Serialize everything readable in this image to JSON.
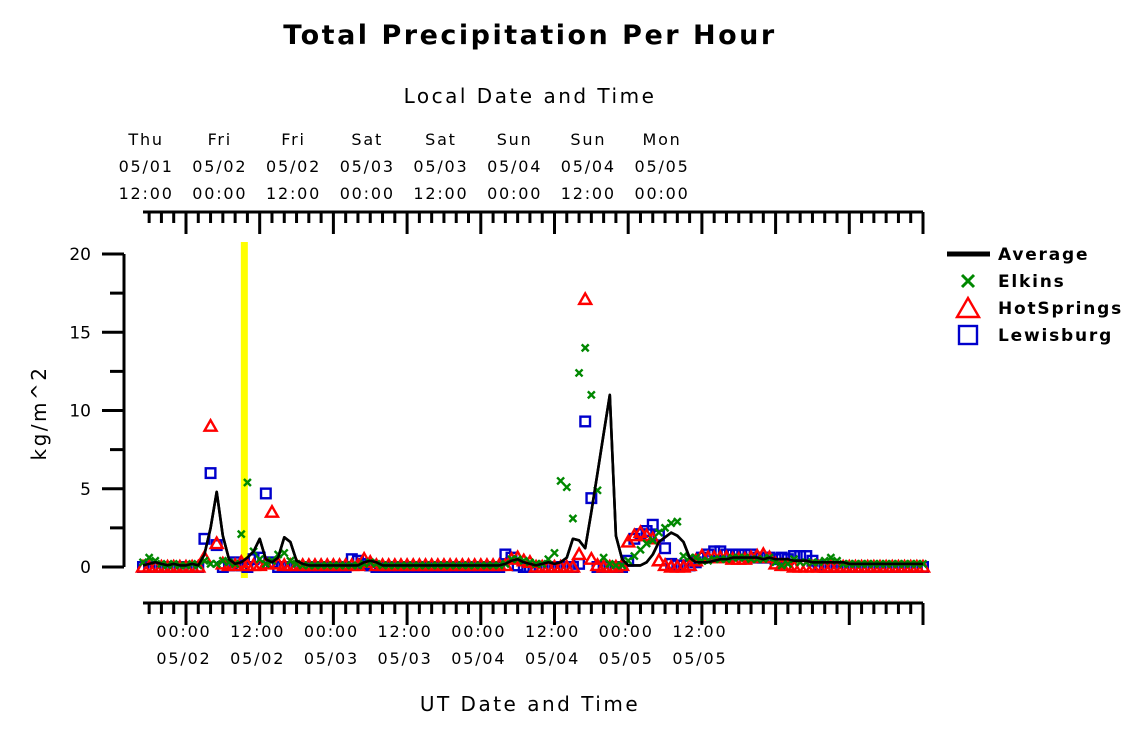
{
  "chart_data": {
    "type": "scatter",
    "title": "Total Precipitation Per Hour",
    "top_axis_title": "Local Date and Time",
    "xlabel": "UT Date and Time",
    "ylabel": "kg/m^2",
    "ylim": [
      0,
      20
    ],
    "y_ticks": [
      "0",
      "5",
      "10",
      "15",
      "20"
    ],
    "x_unit": "hours since 05/01 00:00 UT",
    "xlim": [
      17,
      144
    ],
    "bottom_ticks": [
      {
        "line1": "00:00",
        "line2": "05/02"
      },
      {
        "line1": "12:00",
        "line2": "05/02"
      },
      {
        "line1": "00:00",
        "line2": "05/03"
      },
      {
        "line1": "12:00",
        "line2": "05/03"
      },
      {
        "line1": "00:00",
        "line2": "05/04"
      },
      {
        "line1": "12:00",
        "line2": "05/04"
      },
      {
        "line1": "00:00",
        "line2": "05/05"
      },
      {
        "line1": "12:00",
        "line2": "05/05"
      }
    ],
    "top_ticks": [
      {
        "day": "Thu",
        "date": "05/01",
        "time": "12:00"
      },
      {
        "day": "Fri",
        "date": "05/02",
        "time": "00:00"
      },
      {
        "day": "Fri",
        "date": "05/02",
        "time": "12:00"
      },
      {
        "day": "Sat",
        "date": "05/03",
        "time": "00:00"
      },
      {
        "day": "Sat",
        "date": "05/03",
        "time": "12:00"
      },
      {
        "day": "Sun",
        "date": "05/04",
        "time": "00:00"
      },
      {
        "day": "Sun",
        "date": "05/04",
        "time": "12:00"
      },
      {
        "day": "Mon",
        "date": "05/05",
        "time": "00:00"
      }
    ],
    "highlight_x": 33.5,
    "highlight_color": "#ffff00",
    "legend_position": "right",
    "series": [
      {
        "name": "Average",
        "style": "line",
        "color": "#000000",
        "x": [
          17,
          18,
          19,
          20,
          21,
          22,
          23,
          24,
          25,
          26,
          27,
          28,
          29,
          30,
          31,
          32,
          33,
          34,
          35,
          36,
          37,
          38,
          39,
          40,
          41,
          42,
          43,
          44,
          45,
          46,
          47,
          48,
          49,
          50,
          51,
          52,
          53,
          54,
          55,
          56,
          57,
          58,
          59,
          60,
          61,
          62,
          63,
          64,
          65,
          66,
          67,
          68,
          69,
          70,
          71,
          72,
          73,
          74,
          75,
          76,
          77,
          78,
          79,
          80,
          81,
          82,
          83,
          84,
          85,
          86,
          87,
          88,
          89,
          90,
          91,
          92,
          93,
          94,
          95,
          96,
          97,
          98,
          99,
          100,
          101,
          102,
          103,
          104,
          105,
          106,
          107,
          108,
          109,
          110,
          111,
          112,
          113,
          114,
          115,
          116,
          117,
          118,
          119,
          120,
          121,
          122,
          123,
          124,
          125,
          126,
          127,
          128,
          129,
          130,
          131,
          132,
          133,
          134,
          135,
          136,
          137,
          138,
          139,
          140,
          141,
          142,
          143,
          144
        ],
        "y": [
          0.1,
          0.2,
          0.3,
          0.2,
          0.1,
          0.2,
          0.1,
          0.1,
          0.2,
          0.1,
          0.8,
          2.5,
          4.8,
          2.0,
          0.5,
          0.2,
          0.3,
          0.6,
          1.0,
          1.8,
          0.5,
          0.3,
          0.6,
          1.9,
          1.6,
          0.4,
          0.2,
          0.1,
          0.1,
          0.1,
          0.1,
          0.1,
          0.1,
          0.1,
          0.1,
          0.1,
          0.3,
          0.4,
          0.3,
          0.1,
          0.1,
          0.1,
          0.1,
          0.1,
          0.1,
          0.1,
          0.1,
          0.1,
          0.1,
          0.1,
          0.1,
          0.1,
          0.1,
          0.1,
          0.1,
          0.1,
          0.1,
          0.1,
          0.1,
          0.2,
          0.4,
          0.5,
          0.3,
          0.2,
          0.1,
          0.2,
          0.3,
          0.2,
          0.3,
          0.6,
          1.8,
          1.7,
          1.2,
          3.5,
          6.0,
          8.5,
          11.0,
          2.0,
          0.5,
          0.1,
          0.1,
          0.1,
          0.3,
          0.8,
          1.6,
          1.9,
          2.2,
          2.0,
          1.6,
          0.6,
          0.3,
          0.3,
          0.3,
          0.4,
          0.5,
          0.5,
          0.6,
          0.6,
          0.6,
          0.6,
          0.6,
          0.5,
          0.6,
          0.5,
          0.5,
          0.5,
          0.4,
          0.4,
          0.4,
          0.3,
          0.3,
          0.3,
          0.3,
          0.3,
          0.3,
          0.2,
          0.2,
          0.2,
          0.2,
          0.2,
          0.2,
          0.2,
          0.2,
          0.2,
          0.2,
          0.2,
          0.2,
          0.2
        ]
      },
      {
        "name": "Elkins",
        "style": "x",
        "color": "#008800",
        "x": [
          17,
          18,
          19,
          20,
          21,
          22,
          23,
          24,
          25,
          26,
          27,
          28,
          29,
          30,
          31,
          32,
          33,
          34,
          35,
          36,
          37,
          38,
          39,
          40,
          41,
          42,
          43,
          44,
          45,
          46,
          47,
          48,
          49,
          50,
          51,
          52,
          53,
          54,
          55,
          56,
          57,
          58,
          59,
          60,
          61,
          62,
          63,
          64,
          65,
          66,
          67,
          68,
          69,
          70,
          71,
          72,
          73,
          74,
          75,
          76,
          77,
          78,
          79,
          80,
          81,
          82,
          83,
          84,
          85,
          86,
          87,
          88,
          89,
          90,
          91,
          92,
          93,
          94,
          95,
          96,
          97,
          98,
          99,
          100,
          101,
          102,
          103,
          104,
          105,
          106,
          107,
          108,
          109,
          110,
          111,
          112,
          113,
          114,
          115,
          116,
          117,
          118,
          119,
          120,
          121,
          122,
          123,
          124,
          125,
          126,
          127,
          128,
          129,
          130,
          131,
          132,
          133,
          134,
          135,
          136,
          137,
          138,
          139,
          140,
          141,
          142,
          143,
          144
        ],
        "y": [
          0.3,
          0.6,
          0.4,
          0.2,
          0.1,
          0.2,
          0.1,
          0.1,
          0.2,
          0.1,
          0.4,
          0.2,
          0.2,
          0.4,
          0.3,
          0.2,
          2.1,
          5.4,
          1.0,
          0.5,
          0.2,
          0.4,
          0.8,
          0.9,
          0.4,
          0.2,
          0.1,
          0.1,
          0.1,
          0.1,
          0.1,
          0.1,
          0.1,
          0.1,
          0.1,
          0.1,
          0.2,
          0.3,
          0.2,
          0.1,
          0.1,
          0.1,
          0.1,
          0.1,
          0.1,
          0.1,
          0.1,
          0.1,
          0.1,
          0.1,
          0.1,
          0.1,
          0.1,
          0.1,
          0.1,
          0.1,
          0.1,
          0.1,
          0.1,
          0.2,
          0.5,
          0.5,
          0.4,
          0.3,
          0.2,
          0.2,
          0.5,
          0.9,
          5.5,
          5.1,
          3.1,
          12.4,
          14.0,
          11.0,
          4.9,
          0.6,
          0.2,
          0.1,
          0.1,
          0.4,
          0.7,
          1.1,
          1.5,
          1.7,
          2.2,
          2.5,
          2.8,
          2.9,
          0.7,
          0.6,
          0.6,
          0.4,
          0.4,
          0.5,
          0.5,
          0.5,
          0.6,
          0.6,
          0.6,
          0.5,
          0.5,
          0.5,
          0.6,
          0.3,
          0.1,
          0.2,
          0.5,
          0.3,
          0.3,
          0.3,
          0.3,
          0.4,
          0.6,
          0.4,
          0.2,
          0.2,
          0.2,
          0.2,
          0.2,
          0.2,
          0.2,
          0.2,
          0.2,
          0.2,
          0.2,
          0.2,
          0.2,
          0.2
        ]
      },
      {
        "name": "HotSprings",
        "style": "triangle",
        "color": "#ff0000",
        "x": [
          17,
          18,
          19,
          20,
          21,
          22,
          23,
          24,
          25,
          26,
          27,
          28,
          29,
          30,
          31,
          32,
          33,
          34,
          35,
          36,
          37,
          38,
          39,
          40,
          41,
          42,
          43,
          44,
          45,
          46,
          47,
          48,
          49,
          50,
          51,
          52,
          53,
          54,
          55,
          56,
          57,
          58,
          59,
          60,
          61,
          62,
          63,
          64,
          65,
          66,
          67,
          68,
          69,
          70,
          71,
          72,
          73,
          74,
          75,
          76,
          77,
          78,
          79,
          80,
          81,
          82,
          83,
          84,
          85,
          86,
          87,
          88,
          89,
          90,
          91,
          92,
          93,
          94,
          95,
          96,
          97,
          98,
          99,
          100,
          101,
          102,
          103,
          104,
          105,
          106,
          107,
          108,
          109,
          110,
          111,
          112,
          113,
          114,
          115,
          116,
          117,
          118,
          119,
          120,
          121,
          122,
          123,
          124,
          125,
          126,
          127,
          128,
          129,
          130,
          131,
          132,
          133,
          134,
          135,
          136,
          137,
          138,
          139,
          140,
          141,
          142,
          143,
          144
        ],
        "y": [
          0.0,
          0.0,
          0.0,
          0.0,
          0.0,
          0.0,
          0.0,
          0.0,
          0.0,
          0.0,
          0.6,
          9.0,
          1.5,
          0.2,
          0.1,
          0.1,
          0.3,
          0.1,
          0.1,
          0.1,
          0.2,
          3.5,
          0.2,
          0.1,
          0.1,
          0.1,
          0.1,
          0.1,
          0.1,
          0.1,
          0.1,
          0.1,
          0.1,
          0.1,
          0.1,
          0.1,
          0.5,
          0.3,
          0.1,
          0.1,
          0.1,
          0.1,
          0.1,
          0.1,
          0.1,
          0.1,
          0.1,
          0.1,
          0.1,
          0.1,
          0.1,
          0.1,
          0.1,
          0.1,
          0.1,
          0.1,
          0.1,
          0.1,
          0.1,
          0.1,
          0.5,
          0.6,
          0.4,
          0.3,
          0.0,
          0.0,
          0.0,
          0.0,
          0.0,
          0.0,
          0.0,
          0.8,
          17.1,
          0.5,
          0.1,
          0.0,
          0.0,
          0.0,
          0.1,
          1.6,
          2.0,
          2.2,
          2.0,
          1.8,
          0.4,
          0.1,
          0.0,
          0.0,
          0.0,
          0.1,
          0.4,
          0.7,
          0.6,
          0.6,
          0.6,
          0.6,
          0.5,
          0.5,
          0.5,
          0.6,
          0.7,
          0.8,
          0.6,
          0.2,
          0.1,
          0.1,
          0.0,
          0.0,
          0.0,
          0.0,
          0.0,
          0.0,
          0.0,
          0.0,
          0.0,
          0.0,
          0.0,
          0.0,
          0.0,
          0.0,
          0.0,
          0.0,
          0.0,
          0.0,
          0.0,
          0.0,
          0.0,
          0.0
        ]
      },
      {
        "name": "Lewisburg",
        "style": "square",
        "color": "#0000cc",
        "x": [
          17,
          18,
          19,
          20,
          21,
          22,
          23,
          24,
          25,
          26,
          27,
          28,
          29,
          30,
          31,
          32,
          33,
          34,
          35,
          36,
          37,
          38,
          39,
          40,
          41,
          42,
          43,
          44,
          45,
          46,
          47,
          48,
          49,
          50,
          51,
          52,
          53,
          54,
          55,
          56,
          57,
          58,
          59,
          60,
          61,
          62,
          63,
          64,
          65,
          66,
          67,
          68,
          69,
          70,
          71,
          72,
          73,
          74,
          75,
          76,
          77,
          78,
          79,
          80,
          81,
          82,
          83,
          84,
          85,
          86,
          87,
          88,
          89,
          90,
          91,
          92,
          93,
          94,
          95,
          96,
          97,
          98,
          99,
          100,
          101,
          102,
          103,
          104,
          105,
          106,
          107,
          108,
          109,
          110,
          111,
          112,
          113,
          114,
          115,
          116,
          117,
          118,
          119,
          120,
          121,
          122,
          123,
          124,
          125,
          126,
          127,
          128,
          129,
          130,
          131,
          132,
          133,
          134,
          135,
          136,
          137,
          138,
          139,
          140,
          141,
          142,
          143,
          144
        ],
        "y": [
          0.0,
          0.0,
          0.0,
          0.0,
          0.0,
          0.0,
          0.0,
          0.0,
          0.0,
          0.0,
          1.8,
          6.0,
          1.4,
          0.0,
          0.1,
          0.3,
          0.1,
          0.0,
          0.5,
          0.6,
          4.7,
          0.3,
          0.0,
          0.0,
          0.0,
          0.0,
          0.0,
          0.0,
          0.0,
          0.0,
          0.0,
          0.0,
          0.0,
          0.0,
          0.5,
          0.4,
          0.2,
          0.1,
          0.0,
          0.0,
          0.0,
          0.0,
          0.0,
          0.0,
          0.0,
          0.0,
          0.0,
          0.0,
          0.0,
          0.0,
          0.0,
          0.0,
          0.0,
          0.0,
          0.0,
          0.0,
          0.0,
          0.0,
          0.0,
          0.8,
          0.6,
          0.1,
          0.0,
          0.0,
          0.0,
          0.0,
          0.0,
          0.0,
          0.0,
          0.0,
          0.0,
          0.2,
          9.3,
          4.4,
          0.0,
          0.0,
          0.0,
          0.0,
          0.0,
          0.4,
          1.8,
          2.1,
          2.3,
          2.7,
          2.0,
          1.2,
          0.2,
          0.1,
          0.1,
          0.1,
          0.3,
          0.6,
          0.8,
          1.0,
          1.0,
          0.8,
          0.8,
          0.8,
          0.8,
          0.8,
          0.6,
          0.6,
          0.6,
          0.5,
          0.6,
          0.5,
          0.7,
          0.7,
          0.7,
          0.4,
          0.1,
          0.0,
          0.0,
          0.0,
          0.0,
          0.0,
          0.0,
          0.0,
          0.0,
          0.0,
          0.0,
          0.0,
          0.0,
          0.0,
          0.0,
          0.0,
          0.0,
          0.0
        ]
      }
    ]
  }
}
